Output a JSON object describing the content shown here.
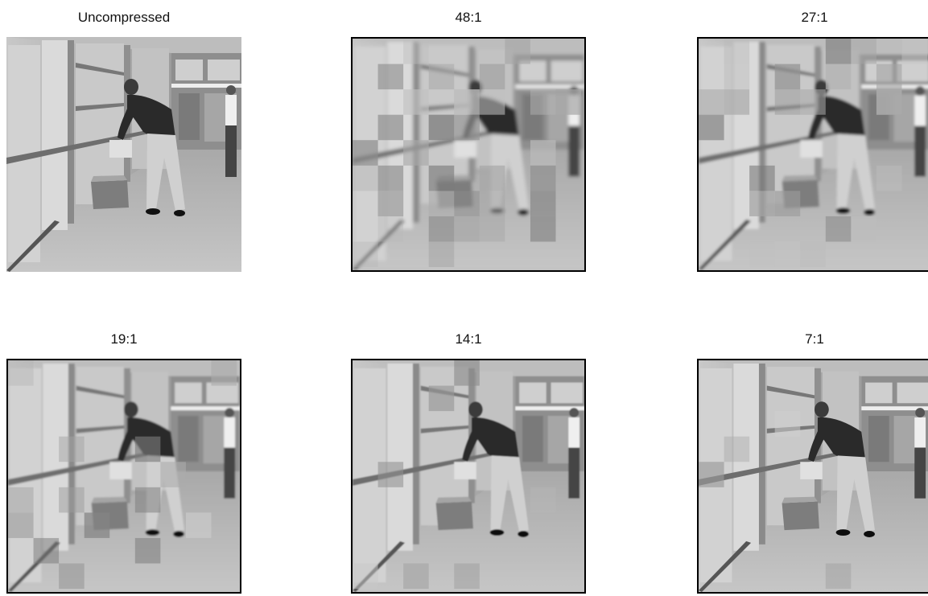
{
  "panels": [
    {
      "caption": "Uncompressed",
      "blocks": 0,
      "blur": 0
    },
    {
      "caption": "48:1",
      "blocks": 38,
      "blur": 2.2
    },
    {
      "caption": "27:1",
      "blocks": 26,
      "blur": 1.6
    },
    {
      "caption": "19:1",
      "blocks": 14,
      "blur": 1.1
    },
    {
      "caption": "14:1",
      "blocks": 8,
      "blur": 0.7
    },
    {
      "caption": "7:1",
      "blocks": 4,
      "blur": 0.35
    }
  ]
}
